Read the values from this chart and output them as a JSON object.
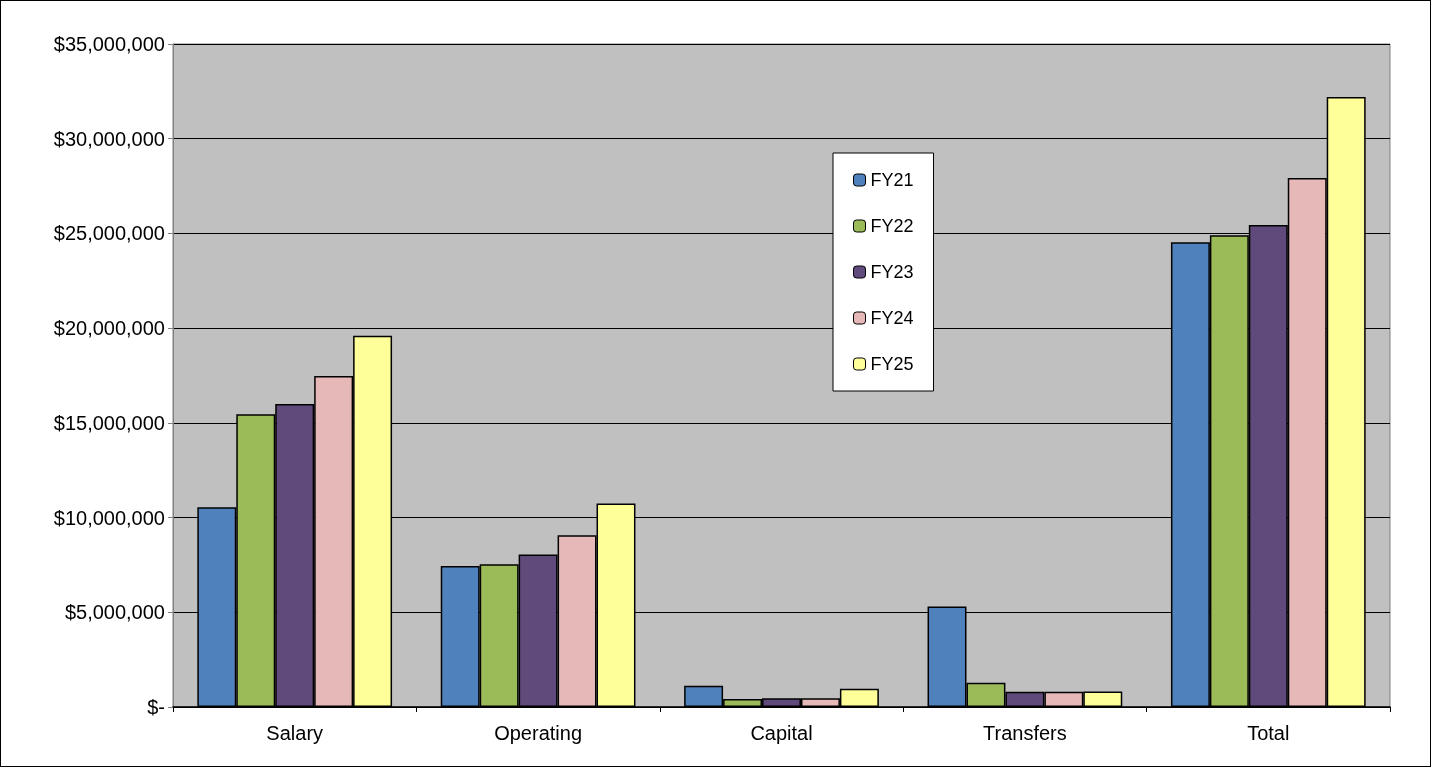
{
  "chart_data": {
    "type": "bar",
    "categories": [
      "Salary",
      "Operating",
      "Capital",
      "Transfers",
      "Total"
    ],
    "series": [
      {
        "name": "FY21",
        "color": "#4f81bd",
        "values": [
          10540000,
          7440000,
          1120000,
          5300000,
          24540000
        ]
      },
      {
        "name": "FY22",
        "color": "#9bbb59",
        "values": [
          15460000,
          7540000,
          420000,
          1280000,
          24900000
        ]
      },
      {
        "name": "FY23",
        "color": "#604a7b",
        "values": [
          16000000,
          8050000,
          460000,
          800000,
          25440000
        ]
      },
      {
        "name": "FY24",
        "color": "#e6b9b8",
        "values": [
          17470000,
          9070000,
          460000,
          800000,
          27930000
        ]
      },
      {
        "name": "FY25",
        "color": "#ffff99",
        "values": [
          19600000,
          10740000,
          970000,
          820000,
          32200000
        ]
      }
    ],
    "ylim": [
      0,
      35000000
    ],
    "yticks": [
      {
        "value": 0,
        "label": "$-"
      },
      {
        "value": 5000000,
        "label": "$5,000,000"
      },
      {
        "value": 10000000,
        "label": "$10,000,000"
      },
      {
        "value": 15000000,
        "label": "$15,000,000"
      },
      {
        "value": 20000000,
        "label": "$20,000,000"
      },
      {
        "value": 25000000,
        "label": "$25,000,000"
      },
      {
        "value": 30000000,
        "label": "$30,000,000"
      },
      {
        "value": 35000000,
        "label": "$35,000,000"
      }
    ],
    "grid": "y",
    "legend": "top"
  }
}
